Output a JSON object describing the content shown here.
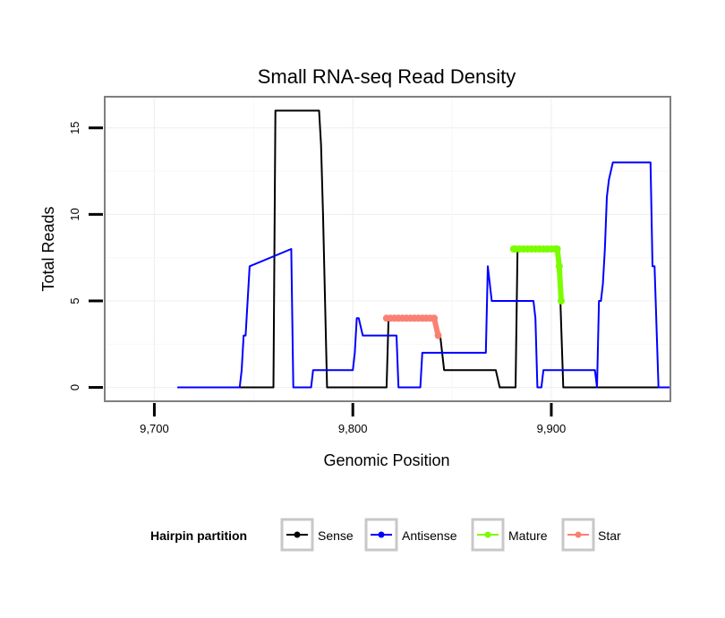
{
  "chart_data": {
    "type": "line",
    "title": "Small RNA-seq Read Density",
    "xlabel": "Genomic Position",
    "ylabel": "Total Reads",
    "xlim": [
      9675,
      9960
    ],
    "ylim": [
      -0.8,
      16.8
    ],
    "x_ticks": [
      9700,
      9800,
      9900
    ],
    "x_tick_labels": [
      "9,700",
      "9,800",
      "9,900"
    ],
    "y_ticks": [
      0,
      5,
      10,
      15
    ],
    "y_tick_labels": [
      "0",
      "5",
      "10",
      "15"
    ],
    "grid": true,
    "legend": {
      "title": "Hairpin partition",
      "position": "bottom"
    },
    "series": [
      {
        "name": "Sense",
        "color": "#000000",
        "style": "line",
        "x": [
          9712,
          9760,
          9761,
          9783,
          9784,
          9785,
          9787,
          9817,
          9818,
          9841,
          9844,
          9846,
          9872,
          9874,
          9882,
          9883,
          9903,
          9904,
          9906,
          9960
        ],
        "y": [
          0,
          0,
          16,
          16,
          14,
          10,
          0,
          0,
          4,
          4,
          3,
          1,
          1,
          0,
          0,
          8,
          8,
          7,
          0,
          0
        ]
      },
      {
        "name": "Antisense",
        "color": "#0000ff",
        "style": "line",
        "x": [
          9712,
          9743,
          9744,
          9745,
          9746,
          9748,
          9769,
          9770,
          9779,
          9780,
          9800,
          9801,
          9802,
          9803,
          9805,
          9822,
          9823,
          9834,
          9835,
          9867,
          9868,
          9870,
          9891,
          9892,
          9893,
          9895,
          9896,
          9922,
          9923,
          9924,
          9925,
          9926,
          9927,
          9928,
          9929,
          9931,
          9950,
          9951,
          9952,
          9954,
          9960
        ],
        "y": [
          0,
          0,
          1,
          3,
          3,
          7,
          8,
          0,
          0,
          1,
          1,
          2,
          4,
          4,
          3,
          3,
          0,
          0,
          2,
          2,
          7,
          5,
          5,
          4,
          0,
          0,
          1,
          1,
          0,
          5,
          5,
          6,
          8,
          11,
          12,
          13,
          13,
          7,
          7,
          0,
          0
        ]
      },
      {
        "name": "Mature",
        "color": "#7cfc00",
        "style": "line-points",
        "x": [
          9881,
          9882,
          9884,
          9886,
          9888,
          9890,
          9892,
          9894,
          9896,
          9898,
          9900,
          9902,
          9903,
          9904,
          9905
        ],
        "y": [
          8,
          8,
          8,
          8,
          8,
          8,
          8,
          8,
          8,
          8,
          8,
          8,
          8,
          7,
          5
        ]
      },
      {
        "name": "Star",
        "color": "#fa8072",
        "style": "line-points",
        "x": [
          9817,
          9819,
          9821,
          9823,
          9825,
          9827,
          9829,
          9831,
          9833,
          9835,
          9837,
          9839,
          9841,
          9843
        ],
        "y": [
          4,
          4,
          4,
          4,
          4,
          4,
          4,
          4,
          4,
          4,
          4,
          4,
          4,
          3
        ]
      }
    ]
  }
}
